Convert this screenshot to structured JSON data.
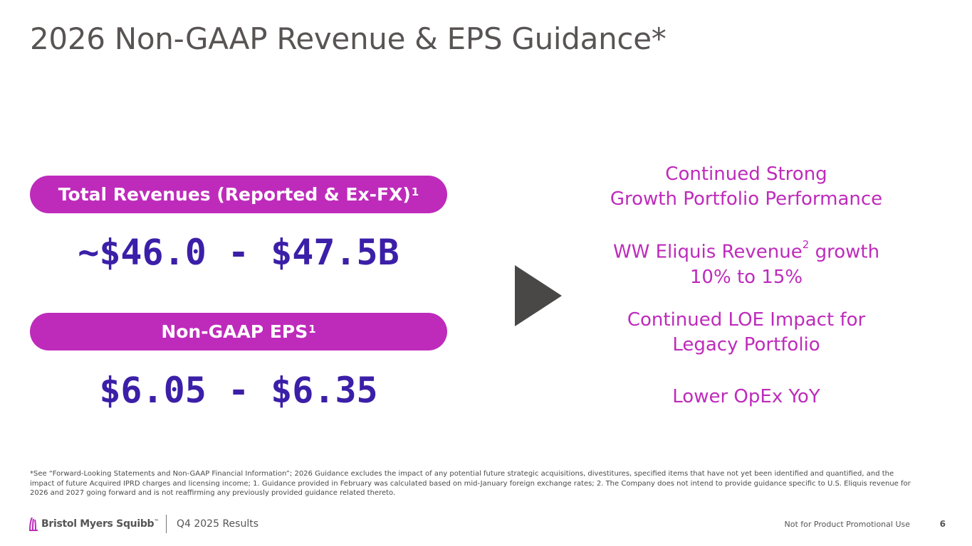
{
  "slide": {
    "title": "2026 Non-GAAP Revenue & EPS Guidance*"
  },
  "revenue": {
    "label": "Total Revenues (Reported & Ex-FX)",
    "label_sup": "1",
    "value": "~$46.0 - $47.5B"
  },
  "eps": {
    "label": "Non-GAAP EPS",
    "label_sup": "1",
    "value": "$6.05 - $6.35"
  },
  "highlights": {
    "h1_line1": "Continued Strong",
    "h1_line2": "Growth Portfolio Performance",
    "h2_line1_a": "WW Eliquis Revenue",
    "h2_line1_sup": "2",
    "h2_line1_b": " growth",
    "h2_line2": "10% to 15%",
    "h3_line1": "Continued LOE Impact for",
    "h3_line2": "Legacy Portfolio",
    "h4_line1": "Lower OpEx YoY"
  },
  "footnote": "*See “Forward-Looking Statements and Non-GAAP Financial Information”; 2026 Guidance excludes the impact of any potential future strategic acquisitions, divestitures, specified items that have not yet been identified and quantified, and the impact of future Acquired IPRD charges and licensing income; 1. Guidance provided in February was calculated based on mid-January foreign exchange rates; 2. The Company does not intend to provide guidance specific to U.S. Eliquis revenue for 2026 and 2027 going forward and is not reaffirming any previously provided guidance related thereto.",
  "footer": {
    "logo_text": "Bristol Myers Squibb",
    "logo_trademark": "™",
    "quarter": "Q4 2025 Results",
    "disclaimer": "Not for Product Promotional Use",
    "page_number": "6"
  },
  "colors": {
    "accent_magenta": "#be2bbb",
    "value_purple": "#3b1fa8",
    "title_gray": "#595454",
    "arrow_gray": "#4a4747"
  }
}
